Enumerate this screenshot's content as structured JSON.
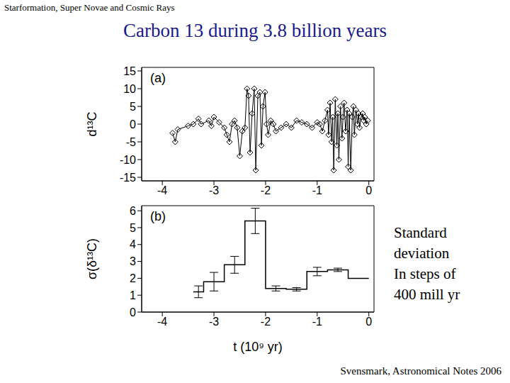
{
  "header": "Starformation, Super Novae and Cosmic Rays",
  "title": "Carbon 13 during 3.8 billion years",
  "side_note": [
    "Standard",
    "deviation",
    "In steps of",
    "400 mill yr"
  ],
  "source": "Svensmark, Astronomical Notes 2006",
  "chart_data": [
    {
      "type": "line",
      "panel_label": "(a)",
      "y_label": "d¹³C",
      "x": [
        -3.8,
        -3.75,
        -3.7,
        -3.5,
        -3.4,
        -3.3,
        -3.25,
        -3.1,
        -3.05,
        -3.0,
        -2.9,
        -2.8,
        -2.75,
        -2.7,
        -2.65,
        -2.6,
        -2.55,
        -2.5,
        -2.45,
        -2.4,
        -2.36,
        -2.33,
        -2.3,
        -2.26,
        -2.22,
        -2.19,
        -2.15,
        -2.11,
        -2.08,
        -2.05,
        -2.01,
        -1.98,
        -1.95,
        -1.9,
        -1.85,
        -1.8,
        -1.7,
        -1.6,
        -1.5,
        -1.4,
        -1.3,
        -1.2,
        -1.1,
        -1.0,
        -0.95,
        -0.9,
        -0.85,
        -0.8,
        -0.78,
        -0.75,
        -0.72,
        -0.7,
        -0.68,
        -0.65,
        -0.62,
        -0.6,
        -0.58,
        -0.55,
        -0.52,
        -0.5,
        -0.48,
        -0.45,
        -0.42,
        -0.4,
        -0.38,
        -0.35,
        -0.32,
        -0.3,
        -0.28,
        -0.25,
        -0.22,
        -0.2,
        -0.18,
        -0.15,
        -0.12,
        -0.1,
        -0.08,
        -0.05,
        -0.02
      ],
      "values": [
        -2.5,
        -5,
        -1.5,
        -0.5,
        0,
        1.5,
        0,
        1,
        -0.5,
        2,
        0.5,
        -1,
        -3,
        -5,
        0,
        1,
        -1,
        -9,
        -2,
        -1,
        10,
        8,
        -8,
        3,
        10,
        -13,
        8,
        9,
        -6,
        5,
        9,
        0,
        -3,
        1,
        0,
        -2,
        -1,
        0,
        -1,
        1,
        0.5,
        0,
        -1,
        0.5,
        0,
        -2,
        1,
        4,
        -3,
        6,
        -5,
        2,
        -13,
        7,
        -6,
        3,
        -10,
        5,
        -4,
        2,
        6,
        -2,
        4,
        -12,
        3,
        -13,
        2,
        5,
        -3,
        4,
        0,
        3,
        -1,
        2,
        3,
        1,
        2,
        0,
        1
      ],
      "color": "#000000",
      "marker": "diamond",
      "xlim": [
        -4.4,
        0.1
      ],
      "xticks": [
        -4,
        -3,
        -2,
        -1,
        0
      ],
      "ylim": [
        -16,
        16
      ],
      "yticks": [
        -15,
        -10,
        -5,
        0,
        5,
        10,
        15
      ]
    },
    {
      "type": "histogram",
      "panel_label": "(b)",
      "x_label": "t (10⁹ yr)",
      "y_label": "σ(δ¹³C)",
      "bins": [
        -3.4,
        -3.2,
        -2.8,
        -2.4,
        -2.0,
        -1.6,
        -1.2,
        -0.8,
        -0.4,
        0
      ],
      "values": [
        1.2,
        1.8,
        2.8,
        5.4,
        1.4,
        1.35,
        2.4,
        2.5,
        2.0
      ],
      "errors": [
        0.35,
        0.55,
        0.5,
        0.75,
        0.15,
        0.1,
        0.25,
        0.1,
        0
      ],
      "color": "#000000",
      "xlim": [
        -4.4,
        0.1
      ],
      "xticks": [
        -4,
        -3,
        -2,
        -1,
        0
      ],
      "ylim": [
        0,
        6.3
      ],
      "yticks": [
        0,
        1,
        2,
        3,
        4,
        5,
        6
      ]
    }
  ]
}
